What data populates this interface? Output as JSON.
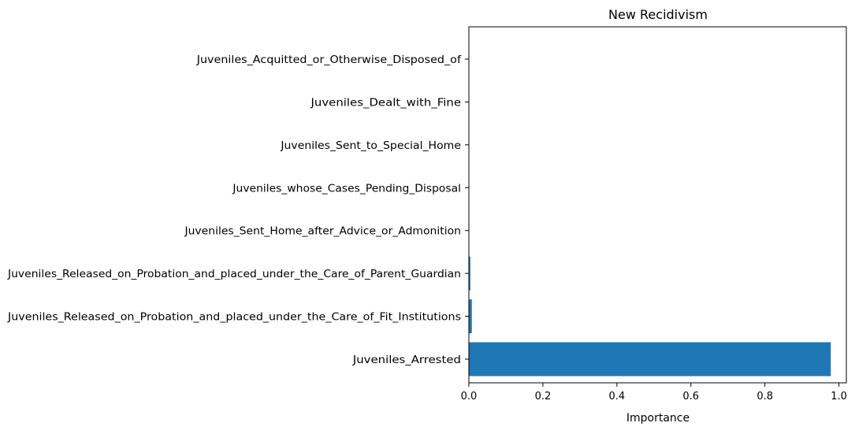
{
  "chart_data": {
    "type": "bar",
    "orientation": "horizontal",
    "title": "New Recidivism",
    "xlabel": "Importance",
    "ylabel": "",
    "xlim": [
      0,
      1.02
    ],
    "xticks": [
      0.0,
      0.2,
      0.4,
      0.6,
      0.8,
      1.0
    ],
    "xtick_labels": [
      "0.0",
      "0.2",
      "0.4",
      "0.6",
      "0.8",
      "1.0"
    ],
    "grid": false,
    "bar_color": "#1f77b4",
    "categories": [
      "Juveniles_Acquitted_or_Otherwise_Disposed_of",
      "Juveniles_Dealt_with_Fine",
      "Juveniles_Sent_to_Special_Home",
      "Juveniles_whose_Cases_Pending_Disposal",
      "Juveniles_Sent_Home_after_Advice_or_Admonition",
      "Juveniles_Released_on_Probation_and_placed_under_the_Care_of_Parent_Guardian",
      "Juveniles_Released_on_Probation_and_placed_under_the_Care_of_Fit_Institutions",
      "Juveniles_Arrested"
    ],
    "values": [
      0.0,
      0.0,
      0.0,
      0.0,
      0.0005,
      0.004,
      0.008,
      0.978
    ]
  }
}
